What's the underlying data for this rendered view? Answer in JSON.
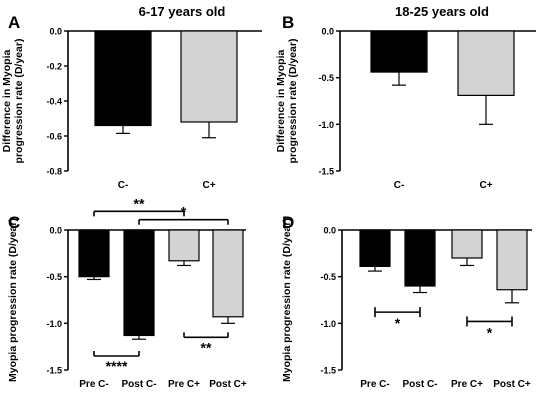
{
  "chart_data": [
    {
      "panel": "A",
      "type": "bar",
      "title": "6-17 years old",
      "ylabel": "Difference in Myopia progression rate (D/year)",
      "ylim": [
        -0.8,
        0.0
      ],
      "yticks": [
        0.0,
        -0.2,
        -0.4,
        -0.6,
        -0.8
      ],
      "tick_labels": [
        "0.0",
        "-0.2",
        "-0.4",
        "-0.6",
        "-0.8"
      ],
      "categories": [
        "C-",
        "C+"
      ],
      "values": [
        -0.54,
        -0.52
      ],
      "errors": [
        0.045,
        0.09
      ],
      "colors": [
        "#000000",
        "#d3d3d3"
      ],
      "annotations": []
    },
    {
      "panel": "B",
      "type": "bar",
      "title": "18-25 years old",
      "ylabel": "Difference in Myopia progression rate (D/year)",
      "ylim": [
        -1.5,
        0.0
      ],
      "yticks": [
        0.0,
        -0.5,
        -1.0,
        -1.5
      ],
      "tick_labels": [
        "0.0",
        "-0.5",
        "-1.0",
        "-1.5"
      ],
      "categories": [
        "C-",
        "C+"
      ],
      "values": [
        -0.44,
        -0.69
      ],
      "errors": [
        0.14,
        0.31
      ],
      "colors": [
        "#000000",
        "#d3d3d3"
      ],
      "annotations": []
    },
    {
      "panel": "C",
      "type": "bar",
      "title": "",
      "ylabel": "Myopia progression rate (D/year)",
      "ylim": [
        -1.5,
        0.0
      ],
      "yticks": [
        0.0,
        -0.5,
        -1.0,
        -1.5
      ],
      "tick_labels": [
        "0.0",
        "-0.5",
        "-1.0",
        "-1.5"
      ],
      "categories": [
        "Pre C-",
        "Post C-",
        "Pre C+",
        "Post C+"
      ],
      "values": [
        -0.5,
        -1.13,
        -0.33,
        -0.93
      ],
      "errors": [
        0.03,
        0.04,
        0.05,
        0.07
      ],
      "colors": [
        "#000000",
        "#000000",
        "#d3d3d3",
        "#d3d3d3"
      ],
      "annotations": [
        {
          "from": 0,
          "to": 2,
          "label": "**",
          "y": 0.2,
          "dir": "down"
        },
        {
          "from": 1,
          "to": 3,
          "label": "*",
          "y": 0.11,
          "dir": "down"
        },
        {
          "from": 0,
          "to": 1,
          "label": "****",
          "y": -1.35,
          "dir": "up"
        },
        {
          "from": 2,
          "to": 3,
          "label": "**",
          "y": -1.15,
          "dir": "up"
        }
      ]
    },
    {
      "panel": "D",
      "type": "bar",
      "title": "",
      "ylabel": "Myopia progression rate (D/year)",
      "ylim": [
        -1.5,
        0.0
      ],
      "yticks": [
        0.0,
        -0.5,
        -1.0,
        -1.5
      ],
      "tick_labels": [
        "0.0",
        "-0.5",
        "-1.0",
        "-1.5"
      ],
      "categories": [
        "Pre C-",
        "Post C-",
        "Pre C+",
        "Post C+"
      ],
      "values": [
        -0.39,
        -0.6,
        -0.3,
        -0.64
      ],
      "errors": [
        0.05,
        0.07,
        0.08,
        0.14
      ],
      "colors": [
        "#000000",
        "#000000",
        "#d3d3d3",
        "#d3d3d3"
      ],
      "annotations": [
        {
          "from": 0,
          "to": 1,
          "label": "*",
          "y": -0.88,
          "dir": "flat"
        },
        {
          "from": 2,
          "to": 3,
          "label": "*",
          "y": -0.98,
          "dir": "flat"
        }
      ]
    }
  ]
}
